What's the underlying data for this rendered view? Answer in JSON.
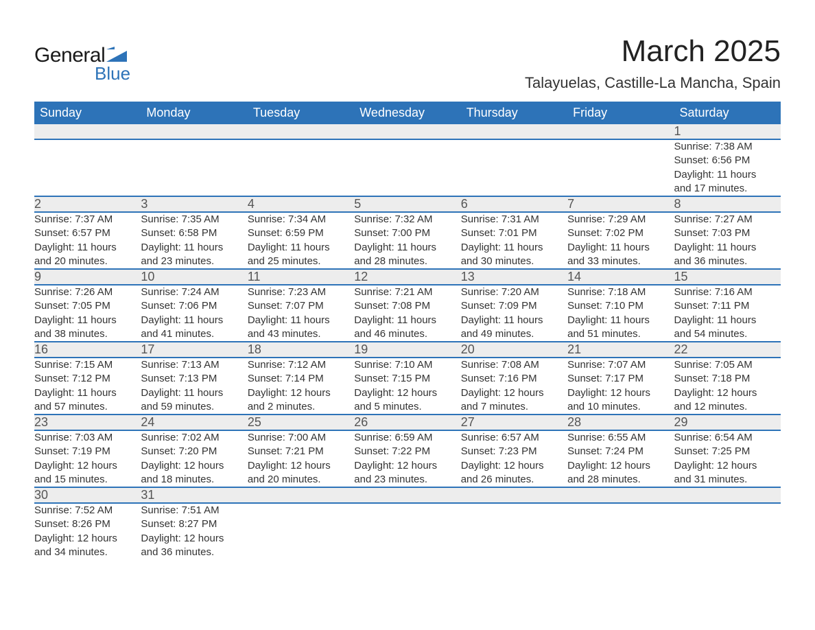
{
  "logo": {
    "word1": "General",
    "word2": "Blue",
    "color_blue": "#2d73b8",
    "color_dark": "#1a1a1a"
  },
  "title": "March 2025",
  "subtitle": "Talayuelas, Castille-La Mancha, Spain",
  "colors": {
    "header_bg": "#2d73b8",
    "header_text": "#ffffff",
    "daynum_bg": "#ededed",
    "daynum_text": "#555555",
    "body_text": "#333333",
    "row_border": "#2d73b8",
    "page_bg": "#ffffff"
  },
  "fonts": {
    "title_pt": 44,
    "subtitle_pt": 22,
    "header_pt": 18,
    "daynum_pt": 18,
    "detail_pt": 15
  },
  "day_headers": [
    "Sunday",
    "Monday",
    "Tuesday",
    "Wednesday",
    "Thursday",
    "Friday",
    "Saturday"
  ],
  "weeks": [
    [
      null,
      null,
      null,
      null,
      null,
      null,
      {
        "n": "1",
        "sunrise": "Sunrise: 7:38 AM",
        "sunset": "Sunset: 6:56 PM",
        "day1": "Daylight: 11 hours",
        "day2": "and 17 minutes."
      }
    ],
    [
      {
        "n": "2",
        "sunrise": "Sunrise: 7:37 AM",
        "sunset": "Sunset: 6:57 PM",
        "day1": "Daylight: 11 hours",
        "day2": "and 20 minutes."
      },
      {
        "n": "3",
        "sunrise": "Sunrise: 7:35 AM",
        "sunset": "Sunset: 6:58 PM",
        "day1": "Daylight: 11 hours",
        "day2": "and 23 minutes."
      },
      {
        "n": "4",
        "sunrise": "Sunrise: 7:34 AM",
        "sunset": "Sunset: 6:59 PM",
        "day1": "Daylight: 11 hours",
        "day2": "and 25 minutes."
      },
      {
        "n": "5",
        "sunrise": "Sunrise: 7:32 AM",
        "sunset": "Sunset: 7:00 PM",
        "day1": "Daylight: 11 hours",
        "day2": "and 28 minutes."
      },
      {
        "n": "6",
        "sunrise": "Sunrise: 7:31 AM",
        "sunset": "Sunset: 7:01 PM",
        "day1": "Daylight: 11 hours",
        "day2": "and 30 minutes."
      },
      {
        "n": "7",
        "sunrise": "Sunrise: 7:29 AM",
        "sunset": "Sunset: 7:02 PM",
        "day1": "Daylight: 11 hours",
        "day2": "and 33 minutes."
      },
      {
        "n": "8",
        "sunrise": "Sunrise: 7:27 AM",
        "sunset": "Sunset: 7:03 PM",
        "day1": "Daylight: 11 hours",
        "day2": "and 36 minutes."
      }
    ],
    [
      {
        "n": "9",
        "sunrise": "Sunrise: 7:26 AM",
        "sunset": "Sunset: 7:05 PM",
        "day1": "Daylight: 11 hours",
        "day2": "and 38 minutes."
      },
      {
        "n": "10",
        "sunrise": "Sunrise: 7:24 AM",
        "sunset": "Sunset: 7:06 PM",
        "day1": "Daylight: 11 hours",
        "day2": "and 41 minutes."
      },
      {
        "n": "11",
        "sunrise": "Sunrise: 7:23 AM",
        "sunset": "Sunset: 7:07 PM",
        "day1": "Daylight: 11 hours",
        "day2": "and 43 minutes."
      },
      {
        "n": "12",
        "sunrise": "Sunrise: 7:21 AM",
        "sunset": "Sunset: 7:08 PM",
        "day1": "Daylight: 11 hours",
        "day2": "and 46 minutes."
      },
      {
        "n": "13",
        "sunrise": "Sunrise: 7:20 AM",
        "sunset": "Sunset: 7:09 PM",
        "day1": "Daylight: 11 hours",
        "day2": "and 49 minutes."
      },
      {
        "n": "14",
        "sunrise": "Sunrise: 7:18 AM",
        "sunset": "Sunset: 7:10 PM",
        "day1": "Daylight: 11 hours",
        "day2": "and 51 minutes."
      },
      {
        "n": "15",
        "sunrise": "Sunrise: 7:16 AM",
        "sunset": "Sunset: 7:11 PM",
        "day1": "Daylight: 11 hours",
        "day2": "and 54 minutes."
      }
    ],
    [
      {
        "n": "16",
        "sunrise": "Sunrise: 7:15 AM",
        "sunset": "Sunset: 7:12 PM",
        "day1": "Daylight: 11 hours",
        "day2": "and 57 minutes."
      },
      {
        "n": "17",
        "sunrise": "Sunrise: 7:13 AM",
        "sunset": "Sunset: 7:13 PM",
        "day1": "Daylight: 11 hours",
        "day2": "and 59 minutes."
      },
      {
        "n": "18",
        "sunrise": "Sunrise: 7:12 AM",
        "sunset": "Sunset: 7:14 PM",
        "day1": "Daylight: 12 hours",
        "day2": "and 2 minutes."
      },
      {
        "n": "19",
        "sunrise": "Sunrise: 7:10 AM",
        "sunset": "Sunset: 7:15 PM",
        "day1": "Daylight: 12 hours",
        "day2": "and 5 minutes."
      },
      {
        "n": "20",
        "sunrise": "Sunrise: 7:08 AM",
        "sunset": "Sunset: 7:16 PM",
        "day1": "Daylight: 12 hours",
        "day2": "and 7 minutes."
      },
      {
        "n": "21",
        "sunrise": "Sunrise: 7:07 AM",
        "sunset": "Sunset: 7:17 PM",
        "day1": "Daylight: 12 hours",
        "day2": "and 10 minutes."
      },
      {
        "n": "22",
        "sunrise": "Sunrise: 7:05 AM",
        "sunset": "Sunset: 7:18 PM",
        "day1": "Daylight: 12 hours",
        "day2": "and 12 minutes."
      }
    ],
    [
      {
        "n": "23",
        "sunrise": "Sunrise: 7:03 AM",
        "sunset": "Sunset: 7:19 PM",
        "day1": "Daylight: 12 hours",
        "day2": "and 15 minutes."
      },
      {
        "n": "24",
        "sunrise": "Sunrise: 7:02 AM",
        "sunset": "Sunset: 7:20 PM",
        "day1": "Daylight: 12 hours",
        "day2": "and 18 minutes."
      },
      {
        "n": "25",
        "sunrise": "Sunrise: 7:00 AM",
        "sunset": "Sunset: 7:21 PM",
        "day1": "Daylight: 12 hours",
        "day2": "and 20 minutes."
      },
      {
        "n": "26",
        "sunrise": "Sunrise: 6:59 AM",
        "sunset": "Sunset: 7:22 PM",
        "day1": "Daylight: 12 hours",
        "day2": "and 23 minutes."
      },
      {
        "n": "27",
        "sunrise": "Sunrise: 6:57 AM",
        "sunset": "Sunset: 7:23 PM",
        "day1": "Daylight: 12 hours",
        "day2": "and 26 minutes."
      },
      {
        "n": "28",
        "sunrise": "Sunrise: 6:55 AM",
        "sunset": "Sunset: 7:24 PM",
        "day1": "Daylight: 12 hours",
        "day2": "and 28 minutes."
      },
      {
        "n": "29",
        "sunrise": "Sunrise: 6:54 AM",
        "sunset": "Sunset: 7:25 PM",
        "day1": "Daylight: 12 hours",
        "day2": "and 31 minutes."
      }
    ],
    [
      {
        "n": "30",
        "sunrise": "Sunrise: 7:52 AM",
        "sunset": "Sunset: 8:26 PM",
        "day1": "Daylight: 12 hours",
        "day2": "and 34 minutes."
      },
      {
        "n": "31",
        "sunrise": "Sunrise: 7:51 AM",
        "sunset": "Sunset: 8:27 PM",
        "day1": "Daylight: 12 hours",
        "day2": "and 36 minutes."
      },
      null,
      null,
      null,
      null,
      null
    ]
  ]
}
